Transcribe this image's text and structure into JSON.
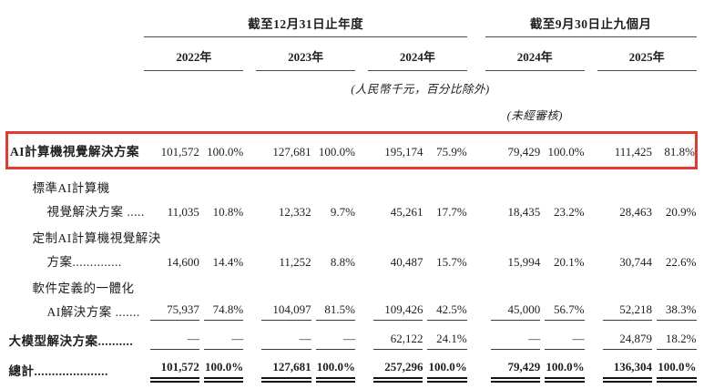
{
  "colors": {
    "highlight_red": "#e23a30",
    "text": "#211d1e",
    "rule_gray": "#4a4a4a"
  },
  "header": {
    "annual_group": {
      "title": "截至12月31日止年度",
      "years": [
        "2022年",
        "2023年",
        "2024年"
      ]
    },
    "interim_group": {
      "title": "截至9月30日止九個月",
      "years": [
        "2024年",
        "2025年"
      ]
    },
    "unit_note": "(人民幣千元，百分比除外)",
    "unaudited_note": "(未經審核)"
  },
  "rows": [
    {
      "label": "AI計算機視覺解決方案",
      "indent": 0,
      "bold": true,
      "highlight": true,
      "values": [
        "101,572",
        "100.0%",
        "127,681",
        "100.0%",
        "195,174",
        "75.9%",
        "79,429",
        "100.0%",
        "111,425",
        "81.8%"
      ]
    },
    {
      "label": "標準AI計算機",
      "indent": 1
    },
    {
      "label": "視覺解決方案 .....",
      "indent": 2,
      "values": [
        "11,035",
        "10.8%",
        "12,332",
        "9.7%",
        "45,261",
        "17.7%",
        "18,435",
        "23.2%",
        "28,463",
        "20.9%"
      ]
    },
    {
      "label": "定制AI計算機視覺解決",
      "indent": 1
    },
    {
      "label": "方案..............",
      "indent": 2,
      "values": [
        "14,600",
        "14.4%",
        "11,252",
        "8.8%",
        "40,487",
        "15.7%",
        "15,994",
        "20.1%",
        "30,744",
        "22.6%"
      ]
    },
    {
      "label": "軟件定義的一體化",
      "indent": 1
    },
    {
      "label": "AI解決方案 .......",
      "indent": 2,
      "underline": true,
      "values": [
        "75,937",
        "74.8%",
        "104,097",
        "81.5%",
        "109,426",
        "42.5%",
        "45,000",
        "56.7%",
        "52,218",
        "38.3%"
      ]
    },
    {
      "label": "大模型解決方案..........",
      "indent": 0,
      "bold": true,
      "underline": true,
      "values": [
        "—",
        "—",
        "—",
        "—",
        "62,122",
        "24.1%",
        "—",
        "—",
        "24,879",
        "18.2%"
      ]
    },
    {
      "label": "總計.....................",
      "indent": 0,
      "bold": true,
      "total": true,
      "values": [
        "101,572",
        "100.0%",
        "127,681",
        "100.0%",
        "257,296",
        "100.0%",
        "79,429",
        "100.0%",
        "136,304",
        "100.0%"
      ]
    }
  ]
}
